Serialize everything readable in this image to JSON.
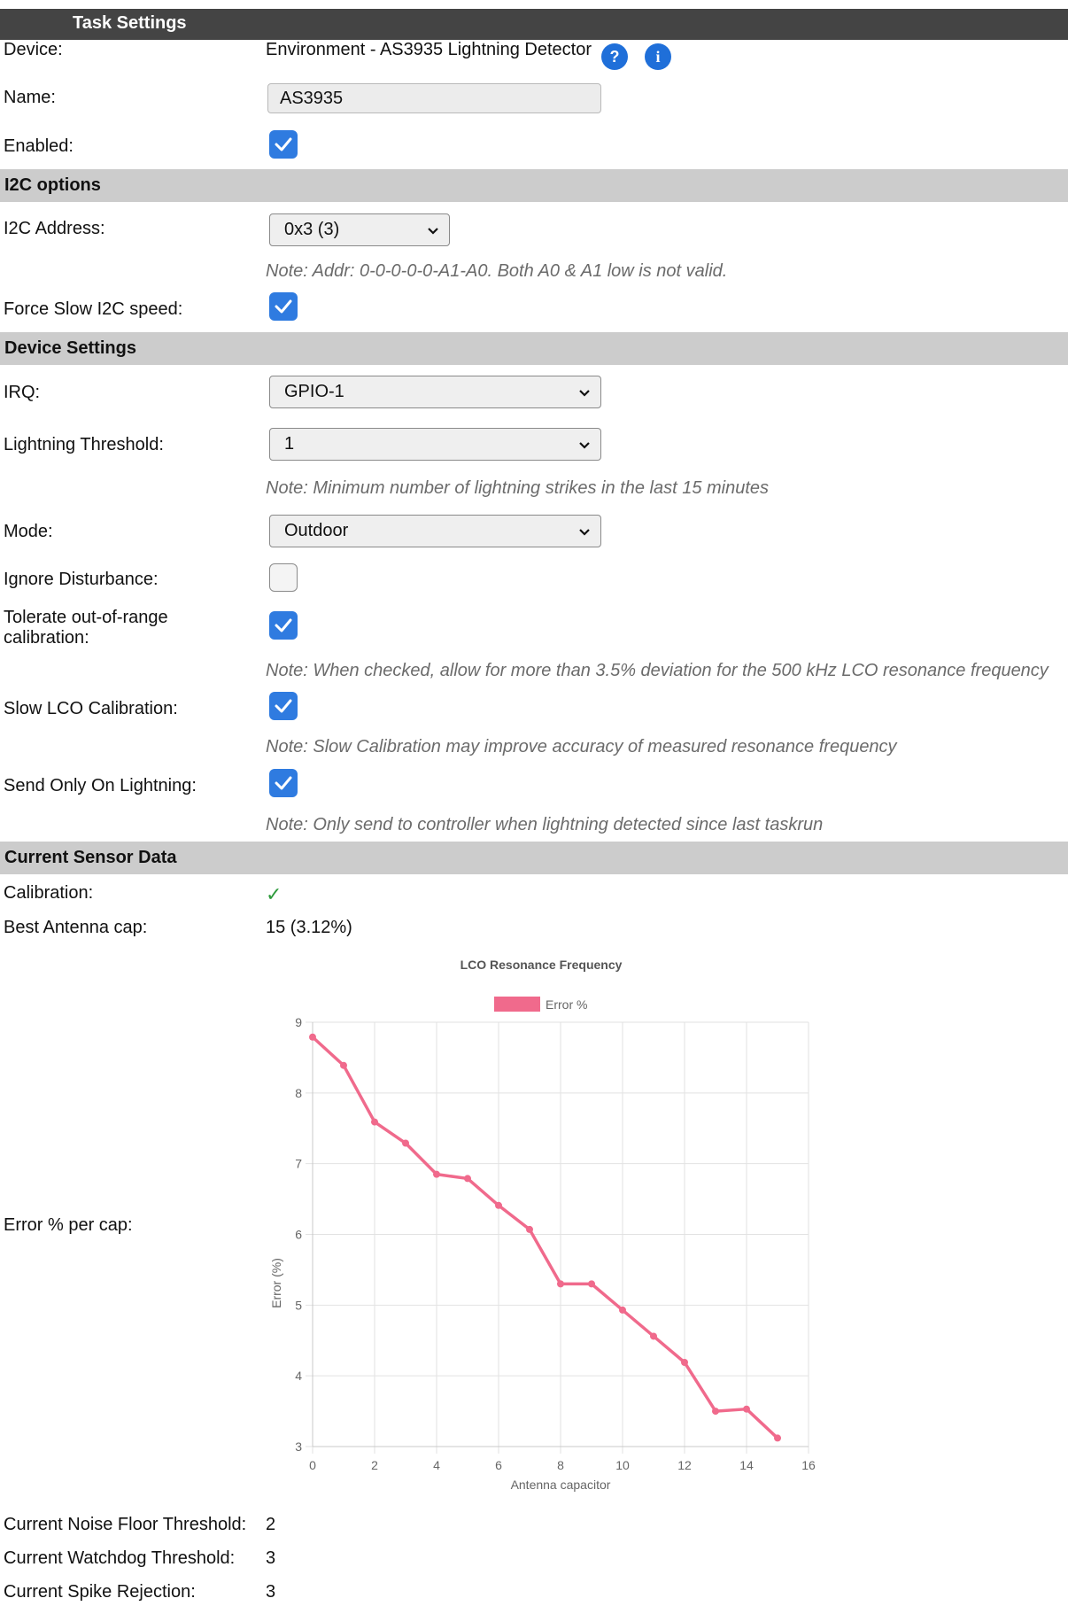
{
  "header": {
    "title": "Task Settings"
  },
  "device": {
    "label": "Device:",
    "value": "Environment - AS3935 Lightning Detector"
  },
  "icons": {
    "help": "question-icon",
    "info": "info-icon",
    "help_glyph": "?",
    "info_glyph": "i"
  },
  "name": {
    "label": "Name:",
    "value": "AS3935"
  },
  "enabled": {
    "label": "Enabled:",
    "checked": true
  },
  "i2c": {
    "section": "I2C options",
    "address_label": "I2C Address:",
    "address_value": "0x3 (3)",
    "address_note": "Note: Addr: 0-0-0-0-0-A1-A0. Both A0 & A1 low is not valid.",
    "slow_label": "Force Slow I2C speed:",
    "slow_checked": true
  },
  "device_settings": {
    "section": "Device Settings",
    "irq_label": "IRQ:",
    "irq_value": "GPIO-1",
    "threshold_label": "Lightning Threshold:",
    "threshold_value": "1",
    "threshold_note": "Note: Minimum number of lightning strikes in the last 15 minutes",
    "mode_label": "Mode:",
    "mode_value": "Outdoor",
    "ignore_label": "Ignore Disturbance:",
    "ignore_checked": false,
    "tolerate_label_1": "Tolerate out-of-range",
    "tolerate_label_2": "calibration:",
    "tolerate_checked": true,
    "tolerate_note": "Note: When checked, allow for more than 3.5% deviation for the 500 kHz LCO resonance frequency",
    "slowlco_label": "Slow LCO Calibration:",
    "slowlco_checked": true,
    "slowlco_note": "Note: Slow Calibration may improve accuracy of measured resonance frequency",
    "sendonly_label": "Send Only On Lightning:",
    "sendonly_checked": true,
    "sendonly_note": "Note: Only send to controller when lightning detected since last taskrun"
  },
  "sensor": {
    "section": "Current Sensor Data",
    "calibration_label": "Calibration:",
    "calibration_value": "✓",
    "antenna_label": "Best Antenna cap:",
    "antenna_value": "15 (3.12%)",
    "error_label": "Error % per cap:",
    "noise_label": "Current Noise Floor Threshold:",
    "noise_value": "2",
    "watchdog_label": "Current Watchdog Threshold:",
    "watchdog_value": "3",
    "spike_label": "Current Spike Rejection:",
    "spike_value": "3"
  },
  "colors": {
    "accent": "#2f7be0",
    "series": "#f06a8c",
    "check_ok": "#2e9b3c"
  },
  "chart_data": {
    "type": "line",
    "title": "LCO Resonance Frequency",
    "xlabel": "Antenna capacitor",
    "ylabel": "Error (%)",
    "legend_position": "top",
    "grid": true,
    "xlim": [
      0,
      16
    ],
    "ylim": [
      3,
      9
    ],
    "xticks": [
      0,
      2,
      4,
      6,
      8,
      10,
      12,
      14,
      16
    ],
    "yticks": [
      3,
      4,
      5,
      6,
      7,
      8,
      9
    ],
    "series": [
      {
        "name": "Error %",
        "x": [
          0,
          1,
          2,
          3,
          4,
          5,
          6,
          7,
          8,
          9,
          10,
          11,
          12,
          13,
          14,
          15
        ],
        "values": [
          8.79,
          8.39,
          7.59,
          7.29,
          6.85,
          6.79,
          6.41,
          6.07,
          5.3,
          5.3,
          4.93,
          4.56,
          4.19,
          3.5,
          3.53,
          3.12
        ]
      }
    ]
  }
}
